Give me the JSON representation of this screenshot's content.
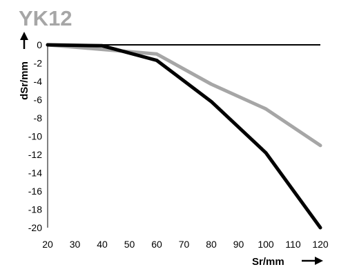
{
  "chart_data": {
    "type": "line",
    "title": "YK12",
    "xlabel": "Sr/mm",
    "ylabel": "dSr/mm",
    "xlim": [
      20,
      120
    ],
    "ylim": [
      -20,
      0
    ],
    "x_ticks": [
      "20",
      "30",
      "40",
      "50",
      "60",
      "70",
      "80",
      "90",
      "100",
      "110",
      "120"
    ],
    "y_ticks": [
      "0",
      "-2",
      "-4",
      "-6",
      "-8",
      "-10",
      "-12",
      "-14",
      "-16",
      "-18",
      "-20"
    ],
    "grid": false,
    "legend": "none",
    "series": [
      {
        "color": "#000000",
        "x": [
          20,
          40,
          60,
          80,
          100,
          120
        ],
        "y": [
          0,
          -0.1,
          -1.7,
          -6.2,
          -11.8,
          -20.0
        ]
      },
      {
        "color": "#a6a6a6",
        "x": [
          20,
          40,
          60,
          80,
          100,
          120
        ],
        "y": [
          0,
          -0.5,
          -1.0,
          -4.3,
          -7.0,
          -11.0
        ]
      }
    ]
  }
}
